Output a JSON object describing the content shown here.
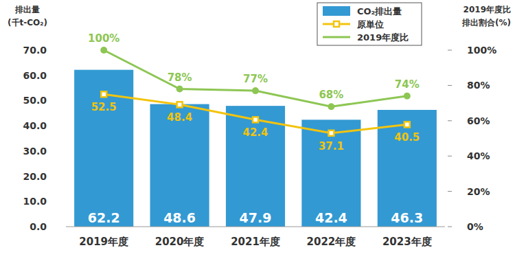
{
  "chart_data": {
    "type": "bar",
    "ylabel": "排出量\n(千t-CO₂)",
    "y2label": "2019年度比\n排出割合(%)",
    "categories": [
      "2019年度",
      "2020年度",
      "2021年度",
      "2022年度",
      "2023年度"
    ],
    "series": [
      {
        "name": "CO₂排出量",
        "type": "bar",
        "color": "#3399d2",
        "values": [
          62.2,
          48.6,
          47.9,
          42.4,
          46.3
        ]
      },
      {
        "name": "原単位",
        "type": "line",
        "color": "#f2c40f",
        "marker": "square",
        "values": [
          52.5,
          48.4,
          42.4,
          37.1,
          40.5
        ]
      },
      {
        "name": "2019年度比",
        "type": "line",
        "color": "#8dc653",
        "marker": "circle",
        "axis": "y2",
        "values": [
          100,
          78,
          77,
          68,
          74
        ],
        "value_labels": [
          "100%",
          "78%",
          "77%",
          "68%",
          "74%"
        ]
      }
    ],
    "ylim": [
      0,
      70
    ],
    "yticks": [
      {
        "value": 0,
        "label": "0.0"
      },
      {
        "value": 10,
        "label": "10.0"
      },
      {
        "value": 20,
        "label": "20.0"
      },
      {
        "value": 30,
        "label": "30.0"
      },
      {
        "value": 40,
        "label": "40.0"
      },
      {
        "value": 50,
        "label": "50.0"
      },
      {
        "value": 60,
        "label": "60.0"
      },
      {
        "value": 70,
        "label": "70.0"
      }
    ],
    "y2lim": [
      0,
      100
    ],
    "y2ticks": [
      {
        "value": 0,
        "label": "0%"
      },
      {
        "value": 20,
        "label": "20%"
      },
      {
        "value": 40,
        "label": "40%"
      },
      {
        "value": 60,
        "label": "60%"
      },
      {
        "value": 80,
        "label": "80%"
      },
      {
        "value": 100,
        "label": "100%"
      }
    ],
    "grid": false,
    "legend": "top-right",
    "data_labels": true
  }
}
